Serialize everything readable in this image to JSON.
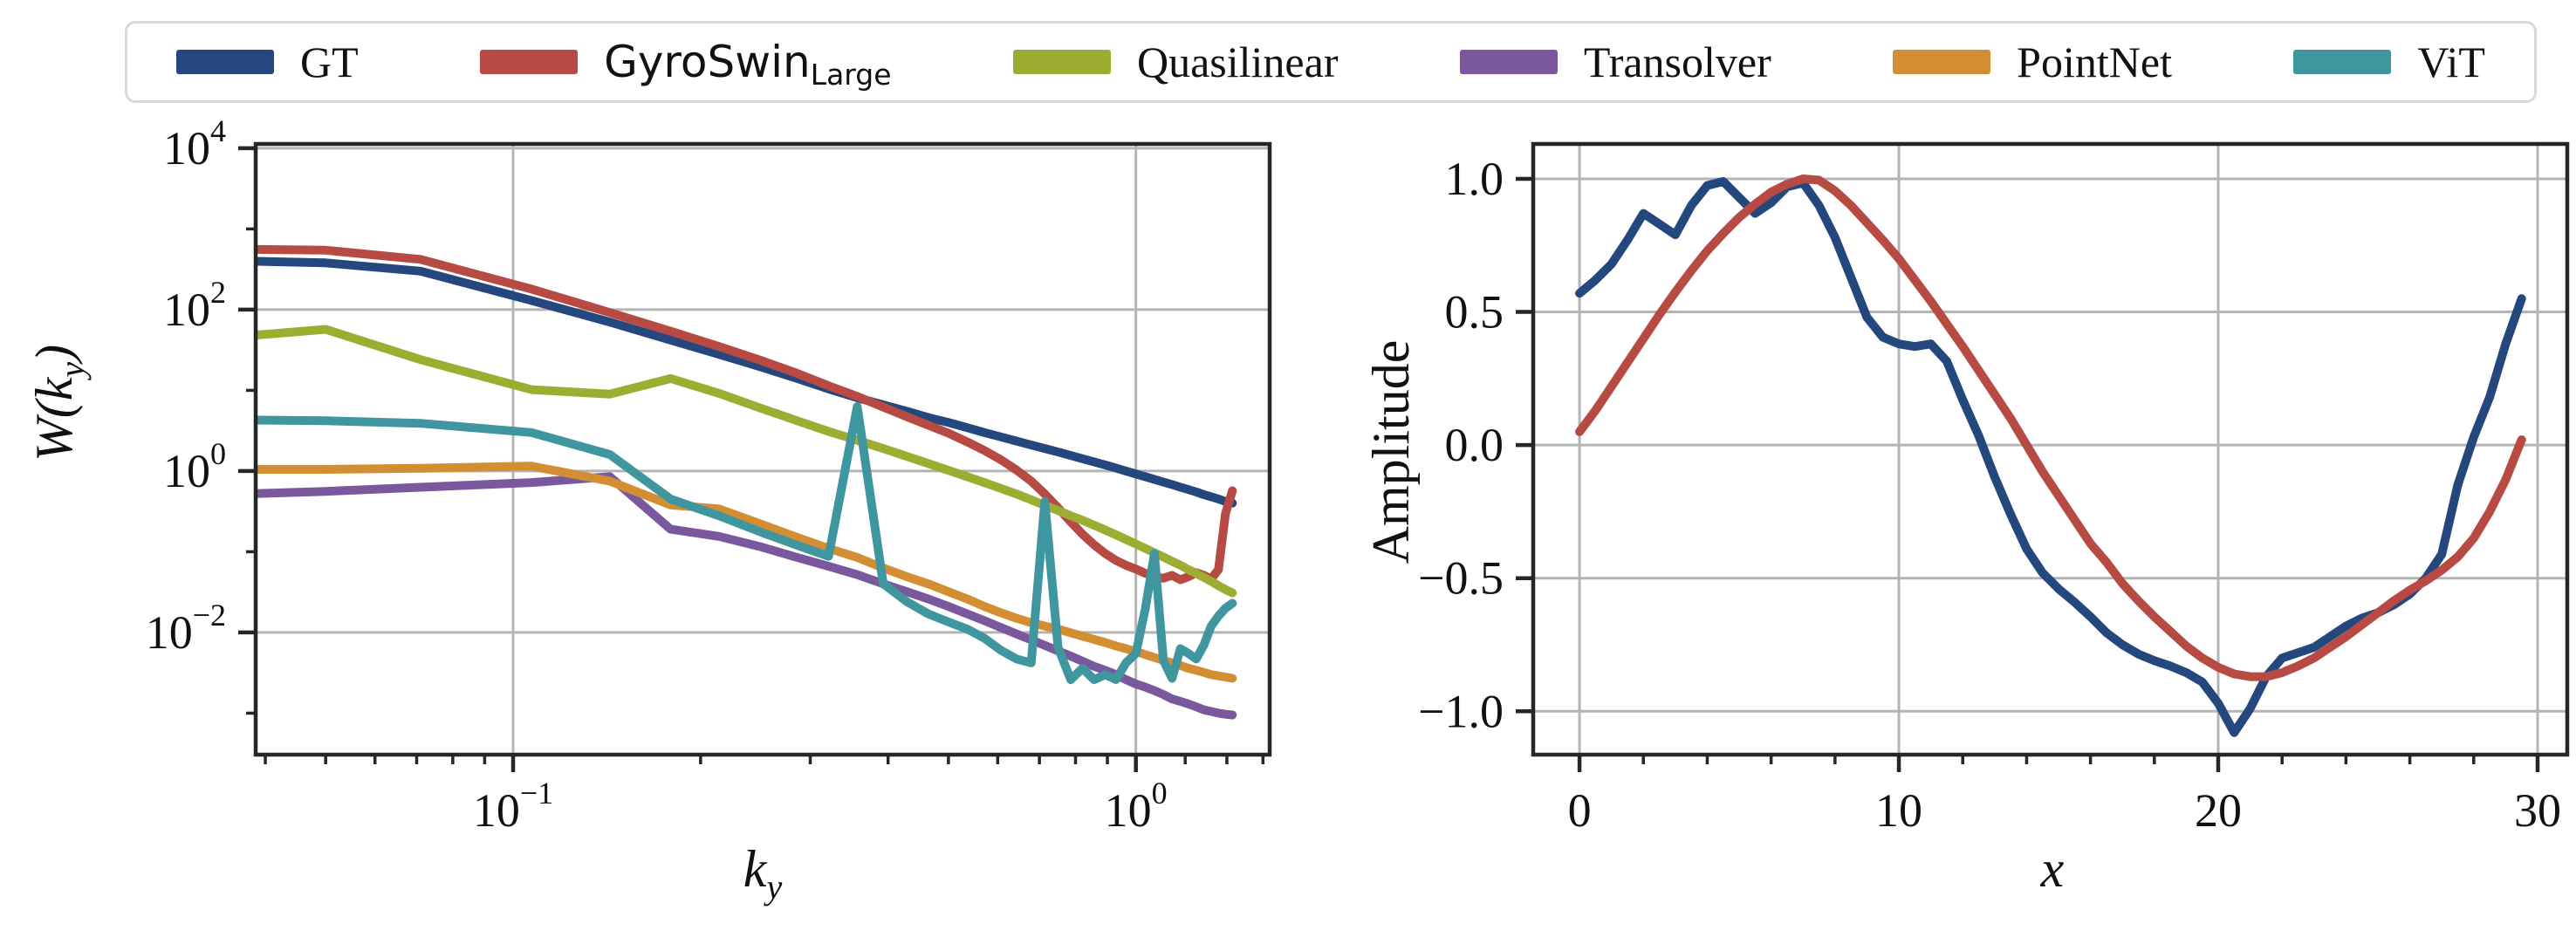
{
  "page": {
    "background": "#ffffff"
  },
  "legend": {
    "position": "top-outside",
    "items": [
      {
        "id": "gt",
        "label": "GT",
        "color": "#24477e",
        "font": "serif"
      },
      {
        "id": "gyroswin",
        "label": "GyroSwin",
        "subscript": "Large",
        "color": "#b74a42",
        "font": "sans"
      },
      {
        "id": "quasilinear",
        "label": "Quasilinear",
        "color": "#9cad32",
        "font": "serif"
      },
      {
        "id": "transolver",
        "label": "Transolver",
        "color": "#7a589d",
        "font": "serif"
      },
      {
        "id": "pointnet",
        "label": "PointNet",
        "color": "#d38e33",
        "font": "serif"
      },
      {
        "id": "vit",
        "label": "ViT",
        "color": "#40969f",
        "font": "serif"
      }
    ]
  },
  "chart_data": [
    {
      "id": "spectrum",
      "type": "line",
      "title": "",
      "xlabel": {
        "parts": [
          {
            "t": "k",
            "italic": true
          },
          {
            "t": "y",
            "sub": true,
            "italic": true
          }
        ]
      },
      "ylabel": {
        "parts": [
          {
            "t": "W(k",
            "italic": true
          },
          {
            "t": "y",
            "sub": true,
            "italic": true
          },
          {
            "t": ")",
            "italic": true
          }
        ]
      },
      "xscale": "log",
      "yscale": "log",
      "xlim": [
        0.0386,
        1.64
      ],
      "ylim": [
        0.000306,
        11300
      ],
      "grid": true,
      "xticks_exp": [
        -1,
        0
      ],
      "yticks_exp": [
        4,
        2,
        0,
        -2
      ],
      "x_minor_ticks": [
        0.04,
        0.05,
        0.06,
        0.07,
        0.08,
        0.09,
        0.2,
        0.3,
        0.4,
        0.5,
        0.6,
        0.7,
        0.8,
        0.9,
        1.2,
        1.4,
        1.6
      ],
      "y_minor_ticks_exp": [
        3,
        1,
        -1,
        -3
      ],
      "x": [
        0.037,
        0.05,
        0.071,
        0.107,
        0.143,
        0.179,
        0.214,
        0.25,
        0.286,
        0.321,
        0.357,
        0.393,
        0.429,
        0.464,
        0.5,
        0.536,
        0.571,
        0.607,
        0.643,
        0.679,
        0.714,
        0.75,
        0.786,
        0.821,
        0.857,
        0.893,
        0.929,
        0.964,
        1.0,
        1.036,
        1.071,
        1.107,
        1.143,
        1.179,
        1.214,
        1.25,
        1.286,
        1.321,
        1.357,
        1.393,
        1.429
      ],
      "series": [
        {
          "name": "GT",
          "color": "#24477e",
          "values": [
            400,
            380,
            300,
            130,
            70,
            42,
            28,
            19.5,
            14,
            10.4,
            8.1,
            6.6,
            5.5,
            4.6,
            4.0,
            3.45,
            3.0,
            2.65,
            2.35,
            2.1,
            1.9,
            1.72,
            1.56,
            1.42,
            1.3,
            1.19,
            1.09,
            1.0,
            0.92,
            0.85,
            0.79,
            0.73,
            0.68,
            0.63,
            0.59,
            0.55,
            0.51,
            0.48,
            0.45,
            0.42,
            0.4
          ]
        },
        {
          "name": "GyroSwin_Large",
          "color": "#b74a42",
          "values": [
            560,
            545,
            420,
            180,
            92,
            54,
            35,
            23.5,
            16.2,
            11.4,
            8.4,
            6.2,
            4.7,
            3.7,
            2.95,
            2.3,
            1.8,
            1.38,
            1.03,
            0.75,
            0.52,
            0.35,
            0.235,
            0.165,
            0.122,
            0.095,
            0.078,
            0.068,
            0.061,
            0.054,
            0.049,
            0.047,
            0.051,
            0.045,
            0.049,
            0.055,
            0.051,
            0.046,
            0.06,
            0.3,
            0.57
          ]
        },
        {
          "name": "Quasilinear",
          "color": "#9cad32",
          "values": [
            47,
            57,
            24,
            10.2,
            9.0,
            14.0,
            9.2,
            6.0,
            4.2,
            3.1,
            2.4,
            1.9,
            1.52,
            1.24,
            1.02,
            0.85,
            0.72,
            0.61,
            0.52,
            0.44,
            0.375,
            0.325,
            0.28,
            0.245,
            0.213,
            0.186,
            0.162,
            0.142,
            0.125,
            0.11,
            0.097,
            0.086,
            0.076,
            0.068,
            0.06,
            0.054,
            0.048,
            0.043,
            0.038,
            0.034,
            0.031
          ]
        },
        {
          "name": "Transolver",
          "color": "#7a589d",
          "values": [
            0.52,
            0.56,
            0.63,
            0.72,
            0.85,
            0.19,
            0.155,
            0.115,
            0.085,
            0.066,
            0.052,
            0.04,
            0.032,
            0.026,
            0.021,
            0.017,
            0.014,
            0.0115,
            0.0096,
            0.0081,
            0.0069,
            0.0059,
            0.0051,
            0.0044,
            0.0038,
            0.0034,
            0.003,
            0.0026,
            0.0023,
            0.0021,
            0.0019,
            0.0017,
            0.0015,
            0.0014,
            0.0013,
            0.0012,
            0.0011,
            0.00105,
            0.001,
            0.00097,
            0.00095
          ]
        },
        {
          "name": "PointNet",
          "color": "#d38e33",
          "values": [
            1.05,
            1.05,
            1.08,
            1.15,
            0.75,
            0.38,
            0.34,
            0.22,
            0.15,
            0.11,
            0.085,
            0.063,
            0.049,
            0.04,
            0.032,
            0.026,
            0.021,
            0.0175,
            0.015,
            0.0132,
            0.012,
            0.011,
            0.0099,
            0.009,
            0.0082,
            0.0075,
            0.0068,
            0.0063,
            0.0058,
            0.0053,
            0.0049,
            0.0045,
            0.0042,
            0.0039,
            0.0036,
            0.0034,
            0.0032,
            0.003,
            0.0029,
            0.0028,
            0.0027
          ]
        },
        {
          "name": "ViT",
          "color": "#40969f",
          "values": [
            4.3,
            4.2,
            3.9,
            3.0,
            1.6,
            0.45,
            0.28,
            0.175,
            0.12,
            0.088,
            6.3,
            0.04,
            0.024,
            0.017,
            0.0135,
            0.011,
            0.0085,
            0.006,
            0.0047,
            0.0042,
            0.42,
            0.0065,
            0.0026,
            0.0036,
            0.0026,
            0.003,
            0.0026,
            0.0042,
            0.0055,
            0.02,
            0.095,
            0.0045,
            0.0027,
            0.0063,
            0.0055,
            0.0047,
            0.007,
            0.012,
            0.016,
            0.02,
            0.023
          ]
        }
      ]
    },
    {
      "id": "amplitude",
      "type": "line",
      "title": "",
      "xlabel": {
        "parts": [
          {
            "t": "x",
            "italic": true
          }
        ]
      },
      "ylabel": {
        "parts": [
          {
            "t": "Amplitude"
          }
        ]
      },
      "xscale": "linear",
      "yscale": "linear",
      "xlim": [
        -1.45,
        30.93
      ],
      "ylim": [
        -1.163,
        1.131
      ],
      "grid": true,
      "xticks": [
        {
          "v": 0,
          "label": "0"
        },
        {
          "v": 10,
          "label": "10"
        },
        {
          "v": 20,
          "label": "20"
        },
        {
          "v": 30,
          "label": "30"
        }
      ],
      "yticks": [
        {
          "v": 1.0,
          "label": "1.0"
        },
        {
          "v": 0.5,
          "label": "0.5"
        },
        {
          "v": 0.0,
          "label": "0.0"
        },
        {
          "v": -0.5,
          "label": "−0.5"
        },
        {
          "v": -1.0,
          "label": "−1.0"
        }
      ],
      "x_minor_ticks": [
        2,
        4,
        6,
        8,
        12,
        14,
        16,
        18,
        22,
        24,
        26,
        28
      ],
      "x": [
        0,
        0.5,
        1,
        1.5,
        2,
        2.5,
        3,
        3.5,
        4,
        4.5,
        5,
        5.5,
        6,
        6.5,
        7,
        7.5,
        8,
        8.5,
        9,
        9.5,
        10,
        10.5,
        11,
        11.5,
        12,
        12.5,
        13,
        13.5,
        14,
        14.5,
        15,
        15.5,
        16,
        16.5,
        17,
        17.5,
        18,
        18.5,
        19,
        19.5,
        20,
        20.5,
        21,
        21.5,
        22,
        22.5,
        23,
        23.5,
        24,
        24.5,
        25,
        25.5,
        26,
        26.5,
        27,
        27.5,
        28,
        28.5,
        29,
        29.5
      ],
      "series": [
        {
          "name": "GT",
          "color": "#24477e",
          "values": [
            0.57,
            0.62,
            0.68,
            0.77,
            0.87,
            0.83,
            0.79,
            0.9,
            0.975,
            0.99,
            0.93,
            0.87,
            0.91,
            0.97,
            0.985,
            0.9,
            0.78,
            0.63,
            0.48,
            0.405,
            0.38,
            0.37,
            0.38,
            0.315,
            0.17,
            0.035,
            -0.12,
            -0.26,
            -0.39,
            -0.48,
            -0.54,
            -0.59,
            -0.645,
            -0.705,
            -0.75,
            -0.785,
            -0.81,
            -0.83,
            -0.855,
            -0.89,
            -0.97,
            -1.08,
            -0.99,
            -0.87,
            -0.8,
            -0.78,
            -0.76,
            -0.72,
            -0.68,
            -0.65,
            -0.63,
            -0.6,
            -0.56,
            -0.5,
            -0.41,
            -0.15,
            0.03,
            0.18,
            0.38,
            0.55
          ]
        },
        {
          "name": "GyroSwin_Large",
          "color": "#b74a42",
          "values": [
            0.05,
            0.13,
            0.22,
            0.31,
            0.4,
            0.49,
            0.575,
            0.655,
            0.73,
            0.795,
            0.855,
            0.905,
            0.95,
            0.98,
            1.0,
            0.995,
            0.955,
            0.9,
            0.835,
            0.77,
            0.7,
            0.62,
            0.54,
            0.455,
            0.37,
            0.28,
            0.19,
            0.1,
            0.0,
            -0.1,
            -0.19,
            -0.28,
            -0.37,
            -0.44,
            -0.52,
            -0.585,
            -0.645,
            -0.7,
            -0.755,
            -0.8,
            -0.835,
            -0.86,
            -0.87,
            -0.87,
            -0.855,
            -0.83,
            -0.8,
            -0.76,
            -0.72,
            -0.675,
            -0.63,
            -0.585,
            -0.545,
            -0.51,
            -0.47,
            -0.42,
            -0.35,
            -0.25,
            -0.13,
            0.02
          ]
        }
      ]
    }
  ]
}
